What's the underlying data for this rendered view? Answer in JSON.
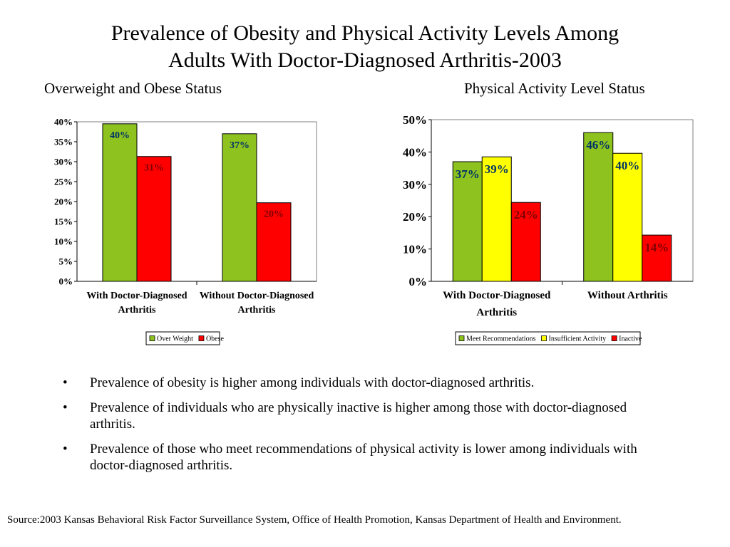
{
  "title_lines": [
    "Prevalence of Obesity and Physical Activity Levels Among",
    "Adults With Doctor-Diagnosed Arthritis-2003"
  ],
  "chart_data": [
    {
      "type": "bar",
      "title": "Overweight and Obese Status",
      "categories": [
        [
          "With Doctor-Diagnosed",
          "Arthritis"
        ],
        [
          "Without Doctor-Diagnosed",
          "Arthritis"
        ]
      ],
      "series": [
        {
          "name": "Over Weight",
          "color": "#8dc21f",
          "values": [
            39.5,
            37.0
          ],
          "labels": [
            "40%",
            "37%"
          ]
        },
        {
          "name": "Obese",
          "color": "#ff0000",
          "values": [
            31.3,
            19.7
          ],
          "labels": [
            "31%",
            "20%"
          ]
        }
      ],
      "ylim": [
        0,
        40
      ],
      "yticks": [
        0,
        5,
        10,
        15,
        20,
        25,
        30,
        35,
        40
      ],
      "ytick_labels": [
        "0%",
        "5%",
        "10%",
        "15%",
        "20%",
        "25%",
        "30%",
        "35%",
        "40%"
      ],
      "legend": "bottom",
      "grid": false
    },
    {
      "type": "bar",
      "title": "Physical Activity Level Status",
      "categories": [
        [
          "With Doctor-Diagnosed",
          "Arthritis"
        ],
        [
          "Without Arthritis"
        ]
      ],
      "series": [
        {
          "name": "Meet Recommendations",
          "color": "#8dc21f",
          "values": [
            37.0,
            46.0
          ],
          "labels": [
            "37%",
            "46%"
          ]
        },
        {
          "name": "Insufficient Activity",
          "color": "#ffff00",
          "values": [
            38.5,
            39.6
          ],
          "labels": [
            "39%",
            "40%"
          ]
        },
        {
          "name": "Inactive",
          "color": "#ff0000",
          "values": [
            24.4,
            14.3
          ],
          "labels": [
            "24%",
            "14%"
          ]
        }
      ],
      "ylim": [
        0,
        50
      ],
      "yticks": [
        0,
        10,
        20,
        30,
        40,
        50
      ],
      "ytick_labels": [
        "0%",
        "10%",
        "20%",
        "30%",
        "40%",
        "50%"
      ],
      "legend": "bottom",
      "grid": false
    }
  ],
  "bullets": [
    "Prevalence of obesity is higher among individuals with doctor-diagnosed arthritis.",
    "Prevalence of individuals who are physically inactive is higher among those with doctor-diagnosed arthritis.",
    "Prevalence of those who meet recommendations of physical activity is lower among individuals with doctor-diagnosed arthritis."
  ],
  "bullet_symbol": "•",
  "source": "Source:2003 Kansas Behavioral Risk Factor Surveillance System, Office of Health Promotion, Kansas Department of Health and Environment."
}
